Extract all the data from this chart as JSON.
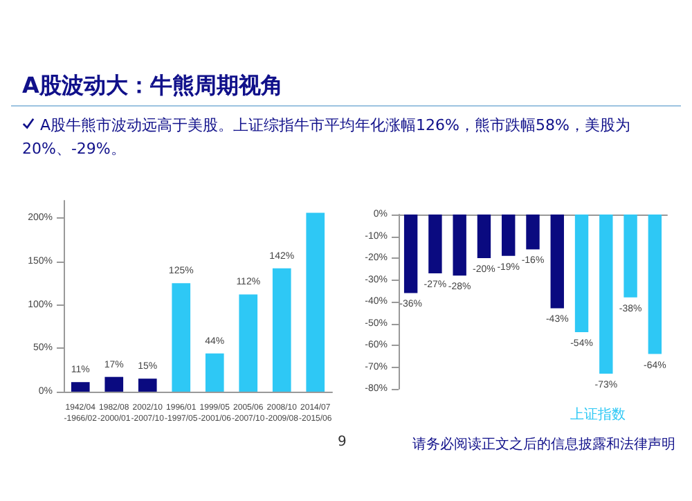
{
  "chart_data": [
    {
      "type": "bar",
      "title": "A股波动大：牛熊周期视角",
      "subtitle": "A股牛熊市波动远高于美股。上证综指牛市平均年化涨幅126%，熊市跌幅58%，美股为20%、-29%。",
      "categories": [
        "1942/04\n-1966/02",
        "1982/08\n-2000/01",
        "2002/10\n-2007/10",
        "1996/01\n-1997/05",
        "1999/05\n-2001/06",
        "2005/06\n-2007/10",
        "2008/10\n-2009/08",
        "2014/07\n-2015/06"
      ],
      "values": [
        11,
        17,
        15,
        125,
        44,
        112,
        142,
        206
      ],
      "value_labels": [
        "11%",
        "17%",
        "15%",
        "125%",
        "44%",
        "112%",
        "142%",
        null
      ],
      "colors": [
        "#0a0a80",
        "#0a0a80",
        "#0a0a80",
        "#2ec8f5",
        "#2ec8f5",
        "#2ec8f5",
        "#2ec8f5",
        "#2ec8f5"
      ],
      "ylim": [
        0,
        220
      ],
      "yticks": [
        {
          "value": 0,
          "label": "0%"
        },
        {
          "value": 50,
          "label": "50%"
        },
        {
          "value": 100,
          "label": "100%"
        },
        {
          "value": 150,
          "label": "150%"
        },
        {
          "value": 200,
          "label": "200%"
        }
      ],
      "annotations": [
        "9",
        "请务必阅读正文之后的信息披露和法律声明"
      ]
    },
    {
      "type": "bar",
      "categories": [
        null,
        null,
        null,
        null,
        null,
        null,
        null,
        null,
        null,
        null,
        null
      ],
      "values": [
        -36,
        -27,
        -28,
        -20,
        -19,
        -16,
        -43,
        -54,
        -73,
        -38,
        -64
      ],
      "colors": [
        "#0a0a80",
        "#0a0a80",
        "#0a0a80",
        "#0a0a80",
        "#0a0a80",
        "#0a0a80",
        "#0a0a80",
        "#2ec8f5",
        "#2ec8f5",
        "#2ec8f5",
        "#2ec8f5"
      ],
      "value_labels": [
        "-36%",
        "-27%",
        "-28%",
        "-20%",
        "-19%",
        "-16%",
        "-43%",
        "-54%",
        "-73%",
        "-38%",
        "-64%"
      ],
      "ylim": [
        -80,
        0
      ],
      "yticks": [
        {
          "value": 0,
          "label": "0%"
        },
        {
          "value": -10,
          "label": "-10%"
        },
        {
          "value": -20,
          "label": "-20%"
        },
        {
          "value": -30,
          "label": "-30%"
        },
        {
          "value": -40,
          "label": "-40%"
        },
        {
          "value": -50,
          "label": "-50%"
        },
        {
          "value": -60,
          "label": "-60%"
        },
        {
          "value": -70,
          "label": "-70%"
        },
        {
          "value": -80,
          "label": "-80%"
        }
      ],
      "annotations": [
        "上证指数"
      ]
    }
  ]
}
